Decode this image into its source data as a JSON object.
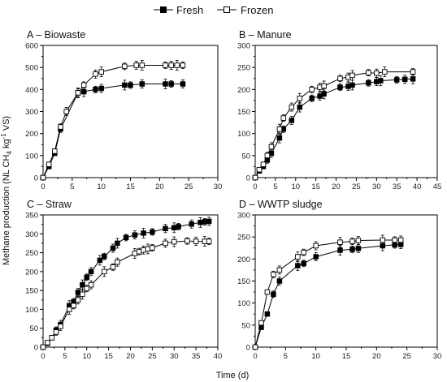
{
  "legend": {
    "fresh": "Fresh",
    "frozen": "Frozen"
  },
  "shared": {
    "xlabel": "Time (d)",
    "ylabel": "Methane production (NL CH4 kg-1 VS)",
    "ylabel_parts": [
      "Methane production (NL CH",
      "4",
      " kg",
      "-1",
      " VS)"
    ]
  },
  "chart_data": [
    {
      "type": "line",
      "title": "A – Biowaste",
      "xlim": [
        0,
        30
      ],
      "xticks": [
        0,
        5,
        10,
        15,
        20,
        25,
        30
      ],
      "ylim": [
        0,
        600
      ],
      "yticks": [
        0,
        100,
        200,
        300,
        400,
        500,
        600
      ],
      "series": [
        {
          "name": "Fresh",
          "x": [
            0,
            1,
            2,
            3,
            6,
            7,
            9,
            10,
            14,
            15,
            17,
            21,
            22,
            24
          ],
          "y": [
            0,
            50,
            110,
            220,
            385,
            390,
            400,
            405,
            420,
            420,
            425,
            425,
            425,
            425
          ]
        },
        {
          "name": "Frozen",
          "x": [
            0,
            1,
            2,
            3,
            4,
            6,
            7,
            9,
            10,
            14,
            16,
            17,
            21,
            22,
            23,
            24
          ],
          "y": [
            0,
            60,
            120,
            230,
            300,
            385,
            420,
            470,
            480,
            505,
            510,
            510,
            510,
            510,
            510,
            510
          ]
        }
      ]
    },
    {
      "type": "line",
      "title": "B – Manure",
      "xlim": [
        0,
        45
      ],
      "xticks": [
        0,
        5,
        10,
        15,
        20,
        25,
        30,
        35,
        40,
        45
      ],
      "ylim": [
        0,
        300
      ],
      "yticks": [
        0,
        50,
        100,
        150,
        200,
        250,
        300
      ],
      "series": [
        {
          "name": "Fresh",
          "x": [
            0,
            1,
            2,
            3,
            4,
            6,
            7,
            9,
            11,
            14,
            16,
            17,
            21,
            23,
            24,
            28,
            30,
            31,
            35,
            37,
            39
          ],
          "y": [
            0,
            15,
            25,
            40,
            55,
            90,
            110,
            130,
            160,
            180,
            185,
            190,
            205,
            207,
            210,
            215,
            218,
            220,
            222,
            223,
            224
          ]
        },
        {
          "name": "Frozen",
          "x": [
            0,
            1,
            2,
            3,
            4,
            6,
            7,
            9,
            11,
            14,
            16,
            17,
            21,
            23,
            24,
            28,
            30,
            32,
            39
          ],
          "y": [
            0,
            18,
            30,
            50,
            70,
            110,
            135,
            160,
            180,
            200,
            205,
            208,
            225,
            228,
            232,
            238,
            237,
            240,
            240
          ]
        }
      ]
    },
    {
      "type": "line",
      "title": "C – Straw",
      "xlim": [
        0,
        40
      ],
      "xticks": [
        0,
        5,
        10,
        15,
        20,
        25,
        30,
        35,
        40
      ],
      "ylim": [
        0,
        350
      ],
      "yticks": [
        0,
        50,
        100,
        150,
        200,
        250,
        300,
        350
      ],
      "series": [
        {
          "name": "Fresh",
          "x": [
            0,
            1,
            2,
            3,
            4,
            6,
            7,
            8,
            9,
            10,
            11,
            13,
            14,
            16,
            17,
            19,
            21,
            23,
            25,
            28,
            30,
            31,
            34,
            36,
            37,
            38
          ],
          "y": [
            0,
            10,
            25,
            45,
            60,
            110,
            120,
            145,
            165,
            185,
            200,
            230,
            240,
            262,
            275,
            290,
            297,
            302,
            305,
            314,
            316,
            319,
            326,
            330,
            332,
            333
          ]
        },
        {
          "name": "Frozen",
          "x": [
            0,
            1,
            2,
            3,
            4,
            6,
            7,
            8,
            9,
            10,
            11,
            14,
            16,
            17,
            21,
            22,
            23,
            24,
            25,
            28,
            30,
            33,
            35,
            37,
            38
          ],
          "y": [
            0,
            12,
            25,
            40,
            55,
            100,
            110,
            125,
            140,
            155,
            165,
            200,
            212,
            225,
            248,
            253,
            257,
            260,
            263,
            275,
            279,
            281,
            280,
            280,
            280
          ]
        }
      ]
    },
    {
      "type": "line",
      "title": "D – WWTP sludge",
      "xlim": [
        0,
        30
      ],
      "xticks": [
        0,
        5,
        10,
        15,
        20,
        25,
        30
      ],
      "ylim": [
        0,
        300
      ],
      "yticks": [
        0,
        50,
        100,
        150,
        200,
        250,
        300
      ],
      "series": [
        {
          "name": "Fresh",
          "x": [
            0,
            1,
            2,
            3,
            4,
            7,
            8,
            10,
            14,
            16,
            17,
            21,
            23,
            24
          ],
          "y": [
            0,
            45,
            75,
            120,
            150,
            185,
            190,
            205,
            220,
            222,
            224,
            230,
            232,
            233
          ]
        },
        {
          "name": "Frozen",
          "x": [
            0,
            1,
            2,
            3,
            4,
            7,
            8,
            10,
            14,
            16,
            17,
            21,
            23,
            24
          ],
          "y": [
            0,
            55,
            125,
            165,
            175,
            205,
            215,
            230,
            238,
            240,
            242,
            243,
            243,
            243
          ]
        }
      ]
    }
  ]
}
